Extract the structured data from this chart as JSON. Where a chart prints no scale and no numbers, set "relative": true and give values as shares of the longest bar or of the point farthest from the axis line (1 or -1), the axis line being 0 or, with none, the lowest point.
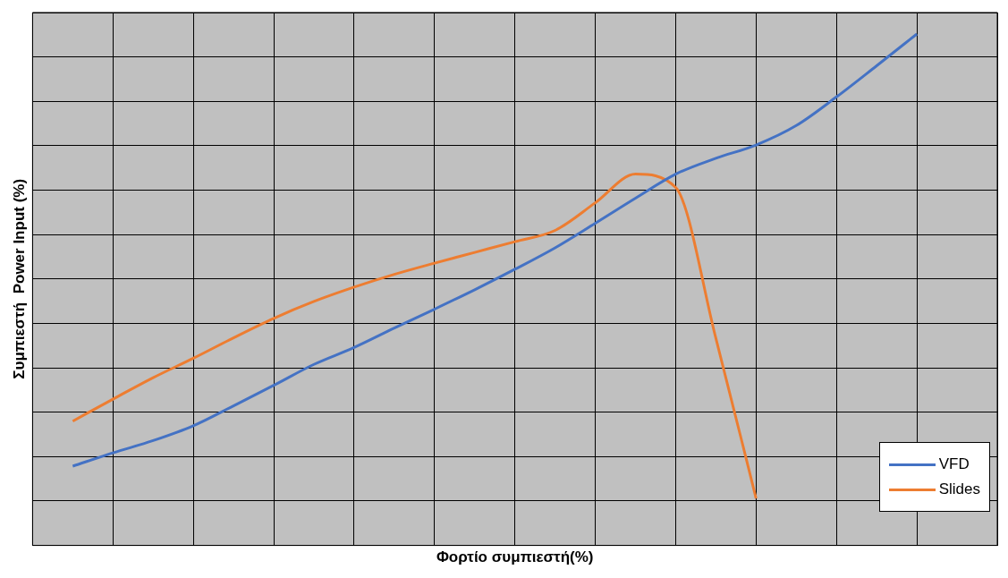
{
  "chart_data": {
    "type": "line",
    "xlabel": "Φορτίο συμπιεστή(%)",
    "ylabel": "Συμπιεστή  Power Input (%)",
    "relative": true,
    "grid": true,
    "legend": "bottom right",
    "tick_labels": false,
    "marker": "none",
    "line_style": "solid",
    "categories": [
      null,
      null,
      null,
      null,
      null,
      null,
      null,
      null,
      null,
      null,
      null,
      null,
      null,
      null,
      null,
      null,
      null,
      null,
      null,
      null,
      null,
      null,
      null,
      null,
      null
    ],
    "series": [
      {
        "name": "VFD",
        "color": "#4472c4",
        "values": [
          null,
          0.155,
          0.181,
          0.205,
          0.234,
          0.273,
          0.313,
          0.354,
          0.387,
          0.425,
          0.462,
          0.5,
          0.54,
          0.582,
          0.63,
          0.679,
          0.726,
          0.757,
          0.783,
          0.821,
          0.877,
          0.938,
          1,
          null,
          null
        ]
      },
      {
        "name": "Slides",
        "color": "#ed7d31",
        "values": [
          null,
          0.243,
          0.286,
          0.328,
          0.366,
          0.406,
          0.444,
          0.477,
          0.505,
          0.53,
          0.552,
          0.573,
          0.594,
          0.616,
          0.67,
          0.726,
          0.7,
          0.405,
          0.092,
          null,
          null,
          null,
          null,
          null,
          null
        ]
      }
    ]
  }
}
